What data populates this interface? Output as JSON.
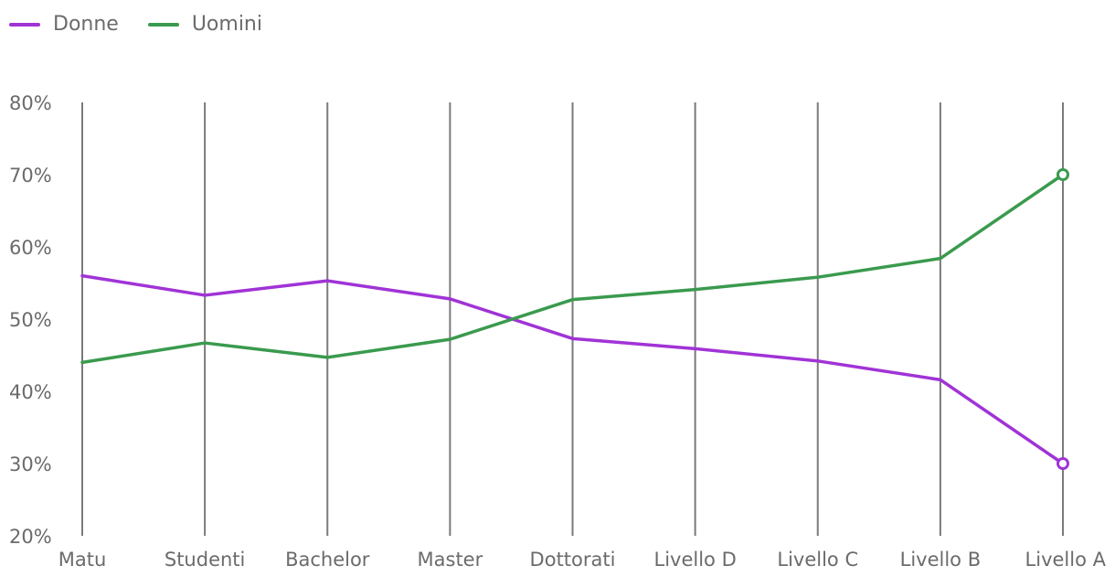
{
  "chart_data": {
    "type": "line",
    "categories": [
      "Matu",
      "Studenti",
      "Bachelor",
      "Master",
      "Dottorati",
      "Livello D",
      "Livello C",
      "Livello B",
      "Livello A"
    ],
    "series": [
      {
        "name": "Donne",
        "color": "#a033d6",
        "values": [
          56,
          53.3,
          55.3,
          52.8,
          47.3,
          45.9,
          44.2,
          41.6,
          30
        ]
      },
      {
        "name": "Uomini",
        "color": "#3a9a4e",
        "values": [
          44,
          46.7,
          44.7,
          47.2,
          52.7,
          54.1,
          55.8,
          58.4,
          70
        ]
      }
    ],
    "ylim": [
      20,
      80
    ],
    "yticks": [
      "20%",
      "30%",
      "40%",
      "50%",
      "60%",
      "70%",
      "80%"
    ],
    "grid": "vertical",
    "legend_position": "top-left",
    "end_markers": true
  }
}
